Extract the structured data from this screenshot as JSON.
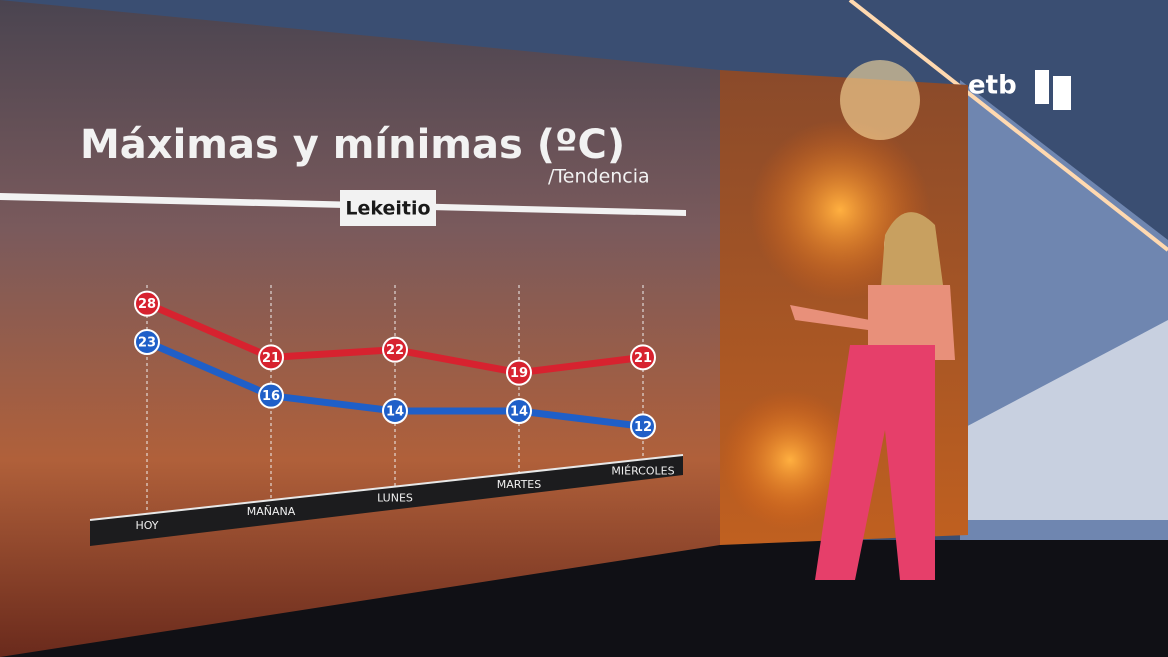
{
  "chart_data": {
    "type": "line",
    "title": "Máximas y mínimas (ºC)",
    "subtitle": "/Tendencia",
    "location": "Lekeitio",
    "categories": [
      "HOY",
      "MAÑANA",
      "LUNES",
      "MARTES",
      "MIÉRCOLES"
    ],
    "series": [
      {
        "name": "Máximas",
        "color": "#d7222f",
        "values": [
          28,
          21,
          22,
          19,
          21
        ]
      },
      {
        "name": "Mínimas",
        "color": "#1f5fc8",
        "values": [
          23,
          16,
          14,
          14,
          12
        ]
      }
    ],
    "ylim": [
      5,
      35
    ]
  },
  "logo": "etb"
}
